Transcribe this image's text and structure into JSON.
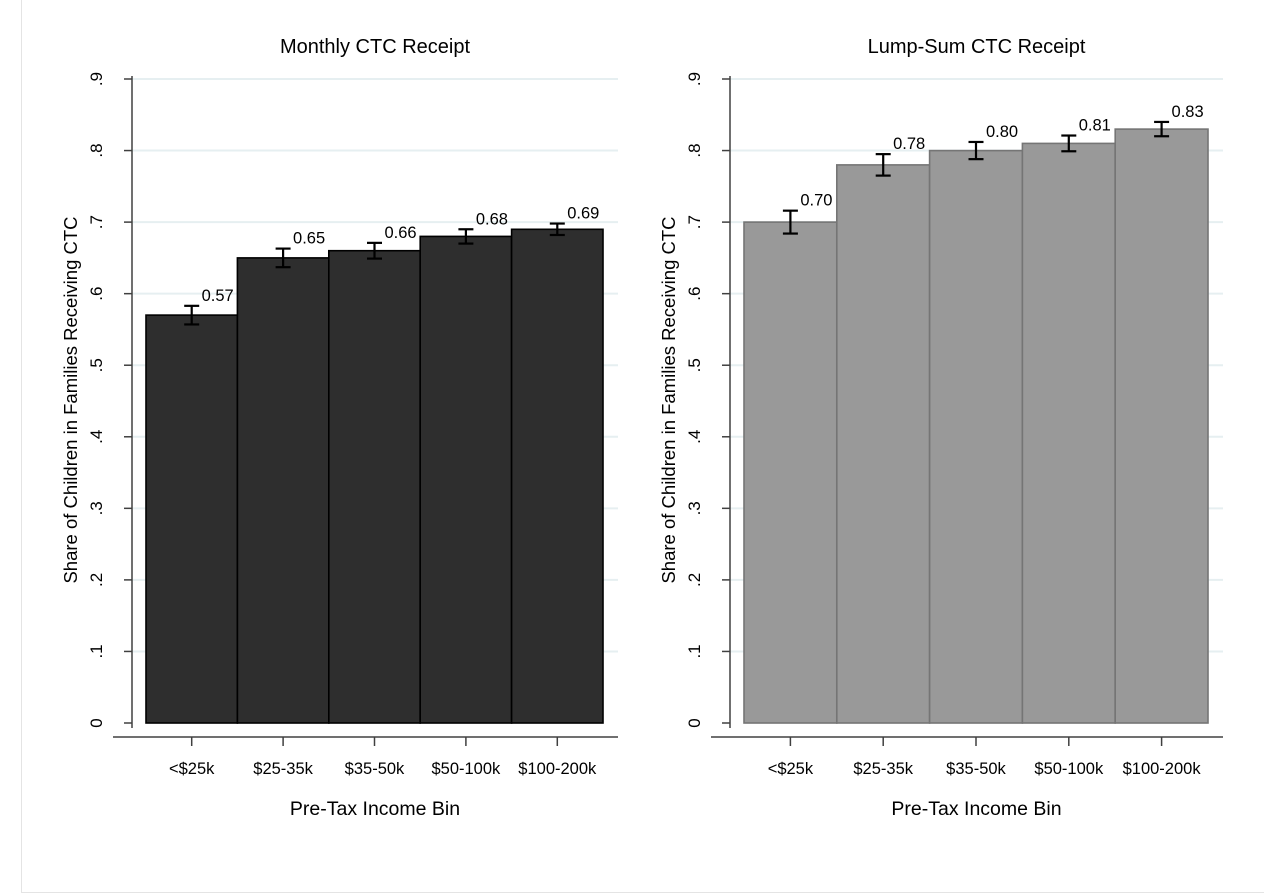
{
  "figure": {
    "name": "CTC receipt by income bin, two-panel bar chart",
    "background": "#ffffff",
    "page_edge_color": "#e4e4e4"
  },
  "style": {
    "grid_color": "#e6eff1",
    "axis_color": "#404040",
    "error_bar_color": "#000000",
    "text_color": "#000000"
  },
  "chart_data": [
    {
      "type": "bar",
      "title": "Monthly CTC Receipt",
      "xlabel": "Pre-Tax Income Bin",
      "ylabel": "Share of Children in Families Receiving CTC",
      "categories": [
        "<$25k",
        "$25-35k",
        "$35-50k",
        "$50-100k",
        "$100-200k"
      ],
      "values": [
        0.57,
        0.65,
        0.66,
        0.68,
        0.69
      ],
      "data_labels": [
        "0.57",
        "0.65",
        "0.66",
        "0.68",
        "0.69"
      ],
      "ci_halfwidth": [
        0.013,
        0.013,
        0.011,
        0.01,
        0.008
      ],
      "ylim": [
        0,
        0.9
      ],
      "yticks": [
        "0",
        ".1",
        ".2",
        ".3",
        ".4",
        ".5",
        ".6",
        ".7",
        ".8",
        ".9"
      ],
      "grid": true,
      "legend": "none",
      "bar_fill": "#2e2e2e",
      "bar_stroke": "#000000"
    },
    {
      "type": "bar",
      "title": "Lump-Sum CTC Receipt",
      "xlabel": "Pre-Tax Income Bin",
      "ylabel": "Share of Children in Families Receiving CTC",
      "categories": [
        "<$25k",
        "$25-35k",
        "$35-50k",
        "$50-100k",
        "$100-200k"
      ],
      "values": [
        0.7,
        0.78,
        0.8,
        0.81,
        0.83
      ],
      "data_labels": [
        "0.70",
        "0.78",
        "0.80",
        "0.81",
        "0.83"
      ],
      "ci_halfwidth": [
        0.016,
        0.015,
        0.012,
        0.011,
        0.01
      ],
      "ylim": [
        0,
        0.9
      ],
      "yticks": [
        "0",
        ".1",
        ".2",
        ".3",
        ".4",
        ".5",
        ".6",
        ".7",
        ".8",
        ".9"
      ],
      "grid": true,
      "legend": "none",
      "bar_fill": "#999999",
      "bar_stroke": "#757575"
    }
  ]
}
